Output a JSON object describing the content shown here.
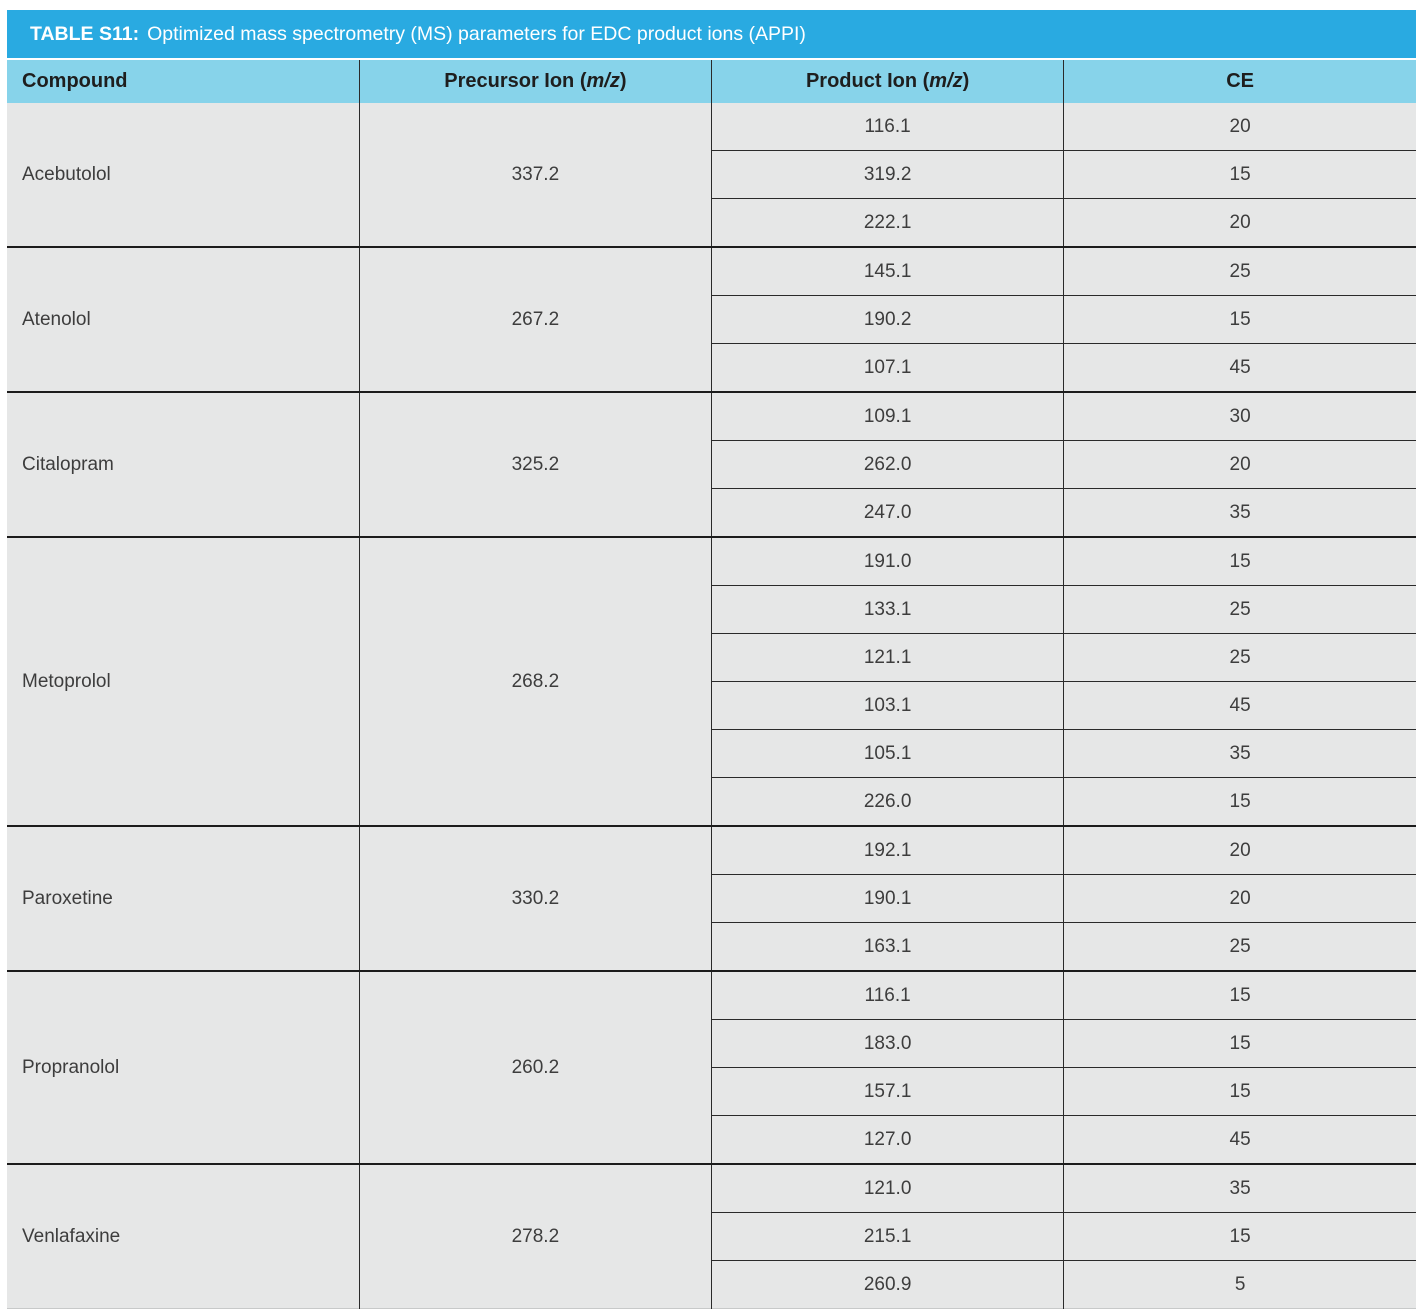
{
  "title": {
    "label": "TABLE S11:",
    "text": "Optimized mass spectrometry (MS) parameters for EDC product ions (APPI)"
  },
  "columns": {
    "compound": "Compound",
    "precursor": {
      "pre": "Precursor Ion (",
      "it": "m/z",
      "post": ")"
    },
    "product": {
      "pre": "Product Ion (",
      "it": "m/z",
      "post": ")"
    },
    "ce": "CE"
  },
  "groups": [
    {
      "compound": "Acebutolol",
      "precursor": "337.2",
      "products": [
        {
          "mz": "116.1",
          "ce": "20"
        },
        {
          "mz": "319.2",
          "ce": "15"
        },
        {
          "mz": "222.1",
          "ce": "20"
        }
      ]
    },
    {
      "compound": "Atenolol",
      "precursor": "267.2",
      "products": [
        {
          "mz": "145.1",
          "ce": "25"
        },
        {
          "mz": "190.2",
          "ce": "15"
        },
        {
          "mz": "107.1",
          "ce": "45"
        }
      ]
    },
    {
      "compound": "Citalopram",
      "precursor": "325.2",
      "products": [
        {
          "mz": "109.1",
          "ce": "30"
        },
        {
          "mz": "262.0",
          "ce": "20"
        },
        {
          "mz": "247.0",
          "ce": "35"
        }
      ]
    },
    {
      "compound": "Metoprolol",
      "precursor": "268.2",
      "products": [
        {
          "mz": "191.0",
          "ce": "15"
        },
        {
          "mz": "133.1",
          "ce": "25"
        },
        {
          "mz": "121.1",
          "ce": "25"
        },
        {
          "mz": "103.1",
          "ce": "45"
        },
        {
          "mz": "105.1",
          "ce": "35"
        },
        {
          "mz": "226.0",
          "ce": "15"
        }
      ]
    },
    {
      "compound": "Paroxetine",
      "precursor": "330.2",
      "products": [
        {
          "mz": "192.1",
          "ce": "20"
        },
        {
          "mz": "190.1",
          "ce": "20"
        },
        {
          "mz": "163.1",
          "ce": "25"
        }
      ]
    },
    {
      "compound": "Propranolol",
      "precursor": "260.2",
      "products": [
        {
          "mz": "116.1",
          "ce": "15"
        },
        {
          "mz": "183.0",
          "ce": "15"
        },
        {
          "mz": "157.1",
          "ce": "15"
        },
        {
          "mz": "127.0",
          "ce": "45"
        }
      ]
    },
    {
      "compound": "Venlafaxine",
      "precursor": "278.2",
      "products": [
        {
          "mz": "121.0",
          "ce": "35"
        },
        {
          "mz": "215.1",
          "ce": "15"
        },
        {
          "mz": "260.9",
          "ce": "5"
        }
      ]
    }
  ],
  "colors": {
    "title_bar_bg": "#29aae1",
    "title_text": "#ffffff",
    "header_bg": "#87d3ea",
    "header_text": "#1e1e1e",
    "body_bg": "#e6e7e7",
    "body_text": "#3d3d3d",
    "grid_line": "#2a2a2a"
  }
}
